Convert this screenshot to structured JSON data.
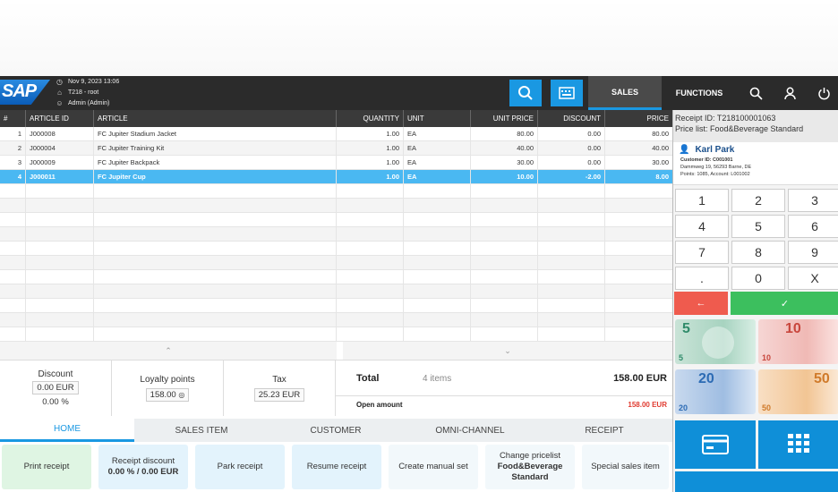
{
  "header": {
    "datetime": "Nov 9, 2023 13:06",
    "store": "T218 - root",
    "user": "Admin (Admin)",
    "logo_text": "SAP",
    "tab_sales": "SALES",
    "tab_functions": "FUNCTIONS",
    "icons": [
      "search-icon",
      "keyboard-icon",
      "search-icon",
      "user-icon",
      "power-icon"
    ]
  },
  "grid": {
    "columns": [
      "#",
      "ARTICLE ID",
      "ARTICLE",
      "QUANTITY",
      "UNIT",
      "UNIT PRICE",
      "DISCOUNT",
      "PRICE"
    ],
    "rows": [
      [
        "1",
        "J000008",
        "FC Jupiter Stadium Jacket",
        "1.00",
        "EA",
        "80.00",
        "0.00",
        "80.00"
      ],
      [
        "2",
        "J000004",
        "FC Jupiter Training Kit",
        "1.00",
        "EA",
        "40.00",
        "0.00",
        "40.00"
      ],
      [
        "3",
        "J000009",
        "FC Jupiter Backpack",
        "1.00",
        "EA",
        "30.00",
        "0.00",
        "30.00"
      ],
      [
        "4",
        "J000011",
        "FC Jupiter Cup",
        "1.00",
        "EA",
        "10.00",
        "-2.00",
        "8.00"
      ]
    ],
    "selected_row": 3
  },
  "totals": {
    "discount_label": "Discount",
    "discount_value": "0.00 EUR",
    "discount_percent": "0.00 %",
    "loyalty_label": "Loyalty points",
    "loyalty_value": "158.00",
    "tax_label": "Tax",
    "tax_value": "25.23 EUR",
    "total_label": "Total",
    "items_count": "4 items",
    "total_value": "158.00 EUR",
    "open_label": "Open amount",
    "open_value": "158.00 EUR"
  },
  "bottom_tabs": [
    "HOME",
    "SALES ITEM",
    "CUSTOMER",
    "OMNI-CHANNEL",
    "RECEIPT"
  ],
  "actions": {
    "print": "Print receipt",
    "receipt_discount": "Receipt discount",
    "receipt_discount_value": "0.00 % / 0.00 EUR",
    "park": "Park receipt",
    "resume": "Resume receipt",
    "manual_set": "Create manual set",
    "change_pricelist": "Change pricelist",
    "pricelist_value": "Food&Beverage Standard",
    "special": "Special sales item"
  },
  "receipt": {
    "id": "Receipt ID: T218100001063",
    "pricelist": "Price list: Food&Beverage Standard"
  },
  "customer": {
    "name": "Karl Park",
    "id": "Customer ID: C001001",
    "address": "Dammweg 19, 56293 Barne, DE",
    "points": "Points: 1085, Account: L001002"
  },
  "keypad": [
    "1",
    "2",
    "3",
    "4",
    "5",
    "6",
    "7",
    "8",
    "9",
    ".",
    "0",
    "X"
  ],
  "keypad_back": "←",
  "keypad_ok": "✓",
  "bills": [
    "5",
    "10",
    "20",
    "50"
  ],
  "colors": {
    "accent": "#1a98e2",
    "header": "#2b2b2b",
    "selected": "#4ab8f2",
    "ok": "#3cbf5e",
    "cancel": "#ef5b4e"
  }
}
